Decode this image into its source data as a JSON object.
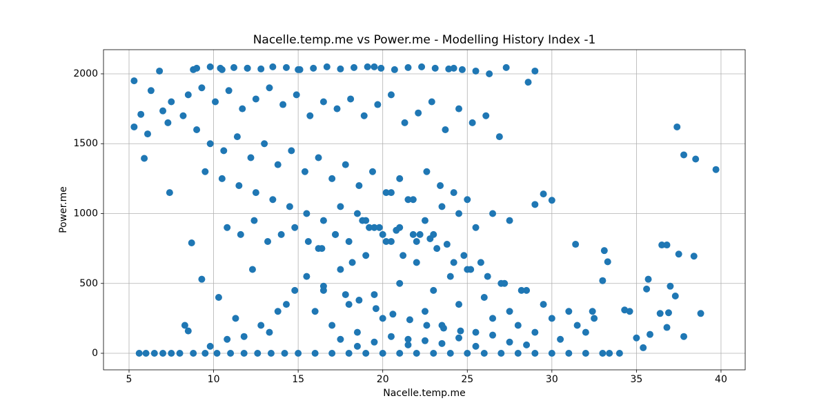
{
  "chart_data": {
    "type": "scatter",
    "title": "Nacelle.temp.me vs Power.me - Modelling History Index -1",
    "x_label": "Nacelle.temp.me",
    "y_label": "Power.me",
    "color": "#1f77b4",
    "grid": true,
    "xlim": [
      3.49,
      41.43
    ],
    "ylim": [
      -118.5,
      2172.8
    ],
    "xticks": [
      5,
      10,
      15,
      20,
      25,
      30,
      35,
      40
    ],
    "yticks": [
      0,
      500,
      1000,
      1500,
      2000
    ],
    "x": [
      37.4,
      37.8,
      38.5,
      39.7,
      5.3,
      5.3,
      5.7,
      5.9,
      6.1,
      6.3,
      7.4,
      7.3,
      7.0,
      9.3,
      8.7,
      8.3,
      8.5,
      37.8,
      38.8,
      38.4,
      37.5,
      36.5,
      36.8,
      35.7,
      35.0,
      35.4,
      35.8,
      36.8,
      37.3,
      37.0,
      36.4,
      36.9,
      35.6,
      34.3,
      34.6,
      33.1,
      33.3,
      31.4,
      32.4,
      33.0,
      29.5,
      30.0,
      29.0,
      28.6,
      29.0,
      27.3,
      24.2,
      19.5,
      12.0,
      15.0,
      10.4,
      8.8,
      6.8,
      5.6,
      6.0,
      6.5,
      7.0,
      7.5,
      8.0,
      8.8,
      9.5,
      10.2,
      11.0,
      11.8,
      12.6,
      13.4,
      14.2,
      15.0,
      16.0,
      17.0,
      18.0,
      19.0,
      20.0,
      21.0,
      22.0,
      23.0,
      24.0,
      25.0,
      26.0,
      27.0,
      28.0,
      29.0,
      30.0,
      31.0,
      32.0,
      33.0,
      33.4,
      34.0,
      16.0,
      16.5,
      17.0,
      17.5,
      18.0,
      18.5,
      19.0,
      19.5,
      20.0,
      20.5,
      21.0,
      21.5,
      22.0,
      22.5,
      23.0,
      23.5,
      24.0,
      24.5,
      25.0,
      25.5,
      26.0,
      26.5,
      27.0,
      27.5,
      28.0,
      28.5,
      29.0,
      29.5,
      30.0,
      30.5,
      31.0,
      31.5,
      32.0,
      32.5,
      16.2,
      17.2,
      18.2,
      19.2,
      20.2,
      21.2,
      22.2,
      23.2,
      24.2,
      25.2,
      26.2,
      27.2,
      28.2,
      17.5,
      18.5,
      19.5,
      20.5,
      21.5,
      22.5,
      23.5,
      24.5,
      25.5,
      26.5,
      27.5,
      28.5,
      18.8,
      19.8,
      20.8,
      21.8,
      22.8,
      23.8,
      24.8,
      25.8,
      15.5,
      16.5,
      17.8,
      18.6,
      19.6,
      20.6,
      21.6,
      22.6,
      23.6,
      24.6,
      9.0,
      9.8,
      10.5,
      11.2,
      12.0,
      12.8,
      13.5,
      14.3,
      15.1,
      15.9,
      16.7,
      17.5,
      18.3,
      19.1,
      19.9,
      20.7,
      21.5,
      22.3,
      23.1,
      23.9,
      24.7,
      25.5,
      26.3,
      8.5,
      9.3,
      10.1,
      10.9,
      11.7,
      12.5,
      13.3,
      14.1,
      14.9,
      15.7,
      16.5,
      17.3,
      18.1,
      18.9,
      19.7,
      20.5,
      21.3,
      22.1,
      22.9,
      23.7,
      24.5,
      25.3,
      26.1,
      26.9,
      7.5,
      8.2,
      9.0,
      9.8,
      10.6,
      11.4,
      12.2,
      13.0,
      13.8,
      14.6,
      15.4,
      16.2,
      17.0,
      17.8,
      18.6,
      19.4,
      20.2,
      21.0,
      21.8,
      22.6,
      23.4,
      24.2,
      25.0,
      9.5,
      10.5,
      11.5,
      12.5,
      13.5,
      14.5,
      15.5,
      16.5,
      17.5,
      18.5,
      19.5,
      20.5,
      21.5,
      22.5,
      23.5,
      24.5,
      25.5,
      26.5,
      27.5,
      10.8,
      11.6,
      12.4,
      13.2,
      14.0,
      14.8,
      15.6,
      16.4,
      17.2,
      18.0,
      19.0,
      20.0,
      21.0,
      22.0,
      23.0,
      10.3,
      11.3,
      12.3,
      13.3,
      14.3,
      9.8,
      10.8,
      11.8,
      12.8,
      13.8,
      14.8
    ],
    "values": [
      1620,
      1420,
      1390,
      1315,
      1950,
      1620,
      1710,
      1395,
      1570,
      1880,
      1150,
      1650,
      1735,
      530,
      790,
      200,
      160,
      120,
      285,
      695,
      710,
      775,
      775,
      530,
      110,
      40,
      135,
      185,
      410,
      480,
      285,
      290,
      460,
      310,
      300,
      735,
      655,
      780,
      300,
      520,
      1140,
      1095,
      1065,
      1940,
      2020,
      2045,
      2040,
      2050,
      2040,
      2030,
      2040,
      2030,
      2020,
      0,
      0,
      0,
      0,
      0,
      0,
      0,
      0,
      0,
      0,
      0,
      0,
      0,
      0,
      0,
      0,
      0,
      0,
      0,
      0,
      0,
      0,
      0,
      0,
      0,
      0,
      0,
      0,
      0,
      0,
      0,
      0,
      0,
      0,
      0,
      300,
      450,
      200,
      600,
      350,
      150,
      700,
      420,
      250,
      800,
      500,
      100,
      650,
      300,
      450,
      200,
      550,
      350,
      600,
      150,
      400,
      250,
      500,
      300,
      200,
      450,
      150,
      350,
      250,
      100,
      300,
      200,
      150,
      250,
      750,
      850,
      650,
      900,
      800,
      700,
      850,
      750,
      650,
      600,
      550,
      500,
      450,
      100,
      50,
      80,
      120,
      60,
      90,
      70,
      110,
      50,
      130,
      80,
      60,
      950,
      900,
      880,
      850,
      820,
      780,
      700,
      650,
      550,
      480,
      420,
      380,
      320,
      280,
      240,
      200,
      180,
      160,
      2040,
      2050,
      2030,
      2045,
      2040,
      2035,
      2050,
      2045,
      2030,
      2040,
      2050,
      2035,
      2045,
      2050,
      2040,
      2030,
      2045,
      2050,
      2040,
      2035,
      2030,
      2020,
      2000,
      1850,
      1900,
      1800,
      1880,
      1750,
      1820,
      1900,
      1780,
      1850,
      1700,
      1800,
      1750,
      1820,
      1700,
      1780,
      1850,
      1650,
      1720,
      1800,
      1600,
      1750,
      1650,
      1700,
      1550,
      1800,
      1700,
      1600,
      1500,
      1450,
      1550,
      1400,
      1500,
      1350,
      1450,
      1300,
      1400,
      1250,
      1350,
      1200,
      1300,
      1150,
      1250,
      1100,
      1300,
      1200,
      1150,
      1100,
      1300,
      1250,
      1200,
      1150,
      1100,
      1050,
      1000,
      950,
      1050,
      1000,
      900,
      1150,
      1100,
      950,
      1050,
      1000,
      900,
      1000,
      950,
      900,
      850,
      950,
      800,
      850,
      900,
      800,
      750,
      850,
      800,
      950,
      850,
      900,
      800,
      850,
      400,
      250,
      600,
      150,
      350,
      50,
      100,
      120,
      200,
      300,
      450
    ]
  }
}
